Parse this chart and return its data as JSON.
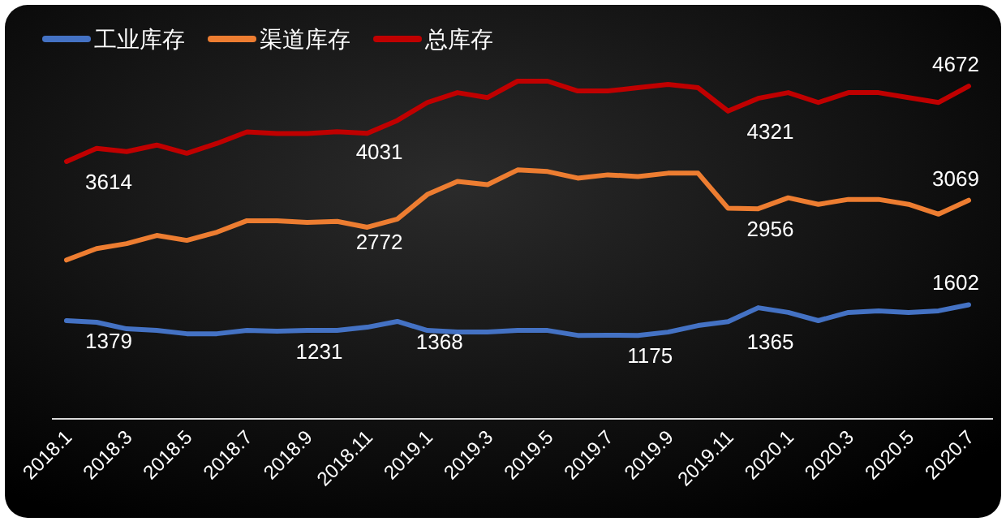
{
  "chart_data": {
    "type": "line",
    "categories": [
      "2018.1",
      null,
      "2018.3",
      null,
      "2018.5",
      null,
      "2018.7",
      null,
      "2018.9",
      null,
      "2018.11",
      null,
      "2019.1",
      null,
      "2019.3",
      null,
      "2019.5",
      null,
      "2019.7",
      null,
      "2019.9",
      null,
      "2019.11",
      null,
      "2020.1",
      null,
      "2020.3",
      null,
      "2020.5",
      null,
      "2020.7"
    ],
    "legend": "top left",
    "marker": "none",
    "series": [
      {
        "name": "工业库存",
        "color": "#4472c4",
        "values": [
          1379,
          1356,
          1264,
          1241,
          1195,
          1195,
          1241,
          1231,
          1241,
          1241,
          1287,
          1368,
          1241,
          1218,
          1218,
          1241,
          1241,
          1172,
          1175,
          1172,
          1218,
          1310,
          1365,
          1560,
          1494,
          1379,
          1494,
          1517,
          1494,
          1517,
          1602
        ],
        "value_labels": [
          "1379",
          null,
          null,
          null,
          null,
          null,
          null,
          "1231",
          null,
          null,
          null,
          "1368",
          null,
          null,
          null,
          null,
          null,
          null,
          "1175",
          null,
          null,
          null,
          "1365",
          null,
          null,
          null,
          null,
          null,
          null,
          null,
          "1602"
        ]
      },
      {
        "name": "渠道库存",
        "color": "#ed7d31",
        "values": [
          2230,
          2391,
          2460,
          2575,
          2506,
          2621,
          2782,
          2782,
          2759,
          2772,
          2690,
          2805,
          3150,
          3334,
          3288,
          3495,
          3472,
          3380,
          3426,
          3403,
          3449,
          3449,
          2956,
          2950,
          3104,
          3012,
          3081,
          3081,
          3012,
          2874,
          3069
        ],
        "value_labels": [
          null,
          null,
          null,
          null,
          null,
          null,
          null,
          null,
          null,
          "2772",
          null,
          null,
          null,
          null,
          null,
          null,
          null,
          null,
          null,
          null,
          null,
          null,
          "2956",
          null,
          null,
          null,
          null,
          null,
          null,
          null,
          "3069"
        ]
      },
      {
        "name": "总库存",
        "color": "#c00000",
        "values": [
          3614,
          3798,
          3752,
          3844,
          3729,
          3867,
          4028,
          4005,
          4005,
          4031,
          4010,
          4189,
          4442,
          4580,
          4511,
          4741,
          4741,
          4603,
          4603,
          4649,
          4695,
          4649,
          4321,
          4500,
          4580,
          4442,
          4580,
          4580,
          4511,
          4442,
          4672
        ],
        "value_labels": [
          "3614",
          null,
          null,
          null,
          null,
          null,
          null,
          null,
          null,
          "4031",
          null,
          null,
          null,
          null,
          null,
          null,
          null,
          null,
          null,
          null,
          null,
          null,
          "4321",
          null,
          null,
          null,
          null,
          null,
          null,
          null,
          "4672"
        ]
      }
    ]
  }
}
